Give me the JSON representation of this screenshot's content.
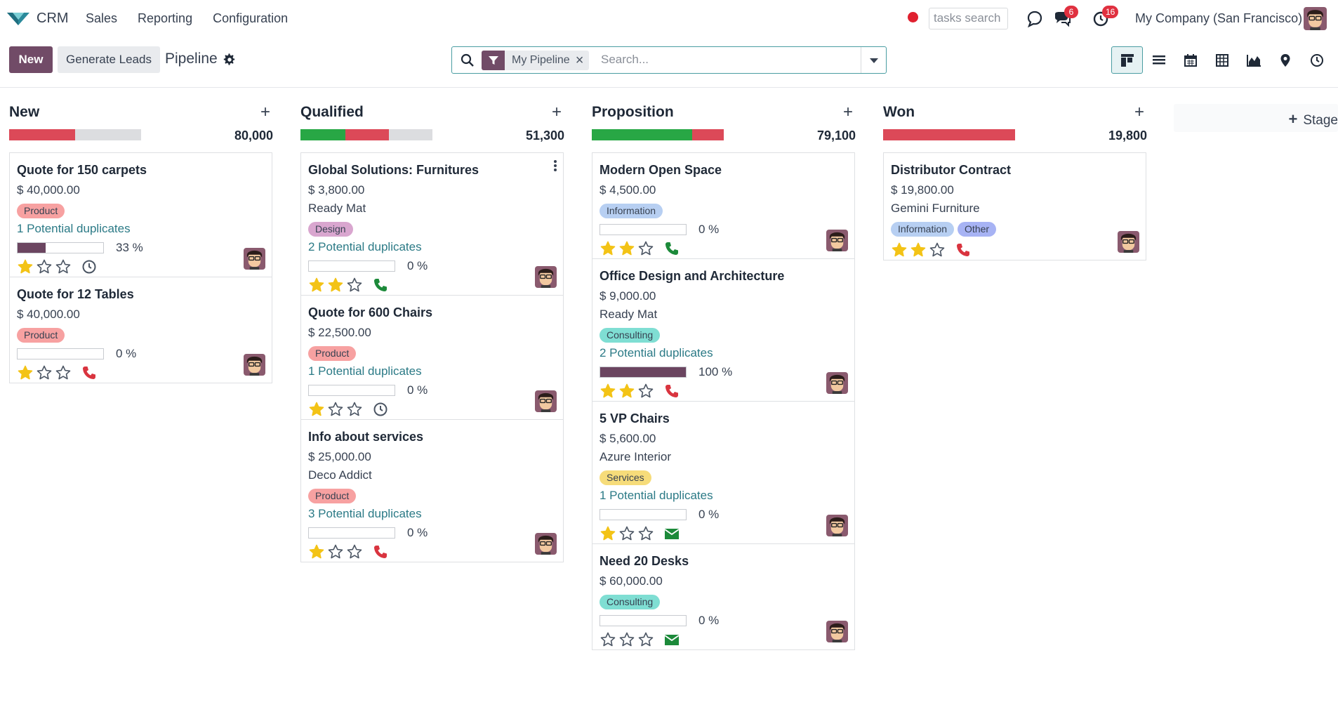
{
  "app": {
    "name": "CRM"
  },
  "nav": {
    "menu": [
      "Sales",
      "Reporting",
      "Configuration"
    ],
    "tasks_placeholder": "tasks search",
    "messages_count": "6",
    "activities_count": "16",
    "company": "My Company (San Francisco)"
  },
  "toolbar": {
    "new_label": "New",
    "generate_label": "Generate Leads",
    "breadcrumb": "Pipeline"
  },
  "search": {
    "facet": "My Pipeline",
    "placeholder": "Search..."
  },
  "stage_add_label": "Stage",
  "colors": {
    "brand": "#714b67",
    "accent": "#2b7a86",
    "green": "#28a745",
    "red": "#dc4958",
    "grey": "#dcdde0",
    "star": "#f3c316"
  },
  "columns": [
    {
      "title": "New",
      "total": "80,000",
      "bar": [
        {
          "color": "#dc4958",
          "frac": 0.5
        }
      ],
      "cards": [
        {
          "title": "Quote for 150 carpets",
          "amount": "$ 40,000.00",
          "tags": [
            {
              "label": "Product",
              "color": "#f7a1a1"
            }
          ],
          "dup": "1 Potential duplicates",
          "progress": 33,
          "progress_label": "33 %",
          "stars": 1,
          "activity": "clock"
        },
        {
          "title": "Quote for 12 Tables",
          "amount": "$ 40,000.00",
          "tags": [
            {
              "label": "Product",
              "color": "#f7a1a1"
            }
          ],
          "progress": 0,
          "progress_label": "0 %",
          "stars": 1,
          "activity": "phone-red"
        }
      ]
    },
    {
      "title": "Qualified",
      "total": "51,300",
      "bar": [
        {
          "color": "#28a745",
          "frac": 0.34
        },
        {
          "color": "#dc4958",
          "frac": 0.33
        }
      ],
      "cards": [
        {
          "title": "Global Solutions: Furnitures",
          "amount": "$ 3,800.00",
          "company": "Ready Mat",
          "tags": [
            {
              "label": "Design",
              "color": "#d9a6cf"
            }
          ],
          "dup": "2 Potential duplicates",
          "progress": 0,
          "progress_label": "0 %",
          "stars": 2,
          "activity": "phone-green"
        },
        {
          "title": "Quote for 600 Chairs",
          "amount": "$ 22,500.00",
          "tags": [
            {
              "label": "Product",
              "color": "#f7a1a1"
            }
          ],
          "dup": "1 Potential duplicates",
          "progress": 0,
          "progress_label": "0 %",
          "stars": 1,
          "activity": "clock"
        },
        {
          "title": "Info about services",
          "amount": "$ 25,000.00",
          "company": "Deco Addict",
          "tags": [
            {
              "label": "Product",
              "color": "#f7a1a1"
            }
          ],
          "dup": "3 Potential duplicates",
          "progress": 0,
          "progress_label": "0 %",
          "stars": 1,
          "activity": "phone-red"
        }
      ]
    },
    {
      "title": "Proposition",
      "total": "79,100",
      "bar": [
        {
          "color": "#28a745",
          "frac": 0.76
        },
        {
          "color": "#dc4958",
          "frac": 0.24
        }
      ],
      "cards": [
        {
          "title": "Modern Open Space",
          "amount": "$ 4,500.00",
          "tags": [
            {
              "label": "Information",
              "color": "#b7cff2"
            }
          ],
          "progress": 0,
          "progress_label": "0 %",
          "stars": 2,
          "activity": "phone-green"
        },
        {
          "title": "Office Design and Architecture",
          "amount": "$ 9,000.00",
          "company": "Ready Mat",
          "tags": [
            {
              "label": "Consulting",
              "color": "#7fded3"
            }
          ],
          "dup": "2 Potential duplicates",
          "progress": 100,
          "progress_label": "100 %",
          "stars": 2,
          "activity": "phone-red"
        },
        {
          "title": "5 VP Chairs",
          "amount": "$ 5,600.00",
          "company": "Azure Interior",
          "tags": [
            {
              "label": "Services",
              "color": "#f6dc7a"
            }
          ],
          "dup": "1 Potential duplicates",
          "progress": 0,
          "progress_label": "0 %",
          "stars": 1,
          "activity": "mail"
        },
        {
          "title": "Need 20 Desks",
          "amount": "$ 60,000.00",
          "tags": [
            {
              "label": "Consulting",
              "color": "#7fded3"
            }
          ],
          "progress": 0,
          "progress_label": "0 %",
          "stars": 0,
          "activity": "mail"
        }
      ]
    },
    {
      "title": "Won",
      "total": "19,800",
      "bar": [
        {
          "color": "#dc4958",
          "frac": 1.0
        }
      ],
      "cards": [
        {
          "title": "Distributor Contract",
          "amount": "$ 19,800.00",
          "company": "Gemini Furniture",
          "tags": [
            {
              "label": "Information",
              "color": "#b7cff2"
            },
            {
              "label": "Other",
              "color": "#a7b3f4"
            }
          ],
          "stars": 2,
          "activity": "phone-red"
        }
      ]
    }
  ]
}
